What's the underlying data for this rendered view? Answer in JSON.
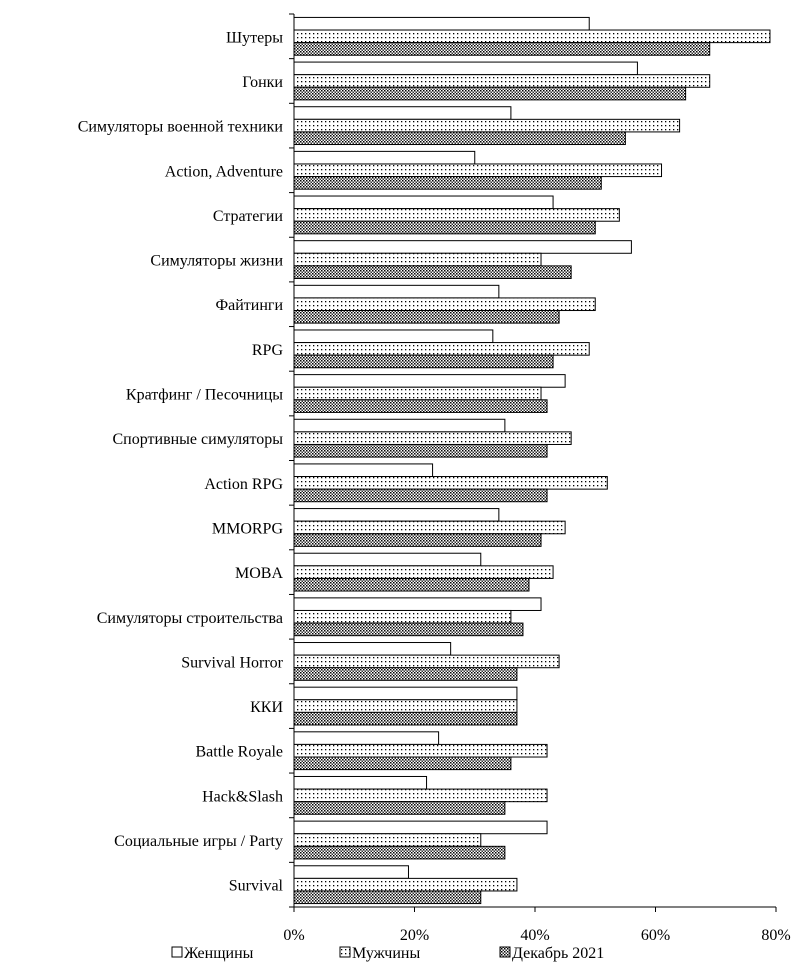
{
  "chart_data": {
    "type": "bar",
    "orientation": "horizontal",
    "title": "",
    "xlabel": "",
    "ylabel": "",
    "xlim": [
      0,
      80
    ],
    "x_ticks": [
      "0%",
      "20%",
      "40%",
      "60%",
      "80%"
    ],
    "grid": false,
    "legend_position": "bottom",
    "categories": [
      "Шутеры",
      "Гонки",
      "Симуляторы военной техники",
      "Action, Adventure",
      "Стратегии",
      "Симуляторы жизни",
      "Файтинги",
      "RPG",
      "Кратфинг / Песочницы",
      "Спортивные симуляторы",
      "Action RPG",
      "MMORPG",
      "MOBA",
      "Симуляторы строительства",
      "Survival Horror",
      "ККИ",
      "Battle Royale",
      "Hack&Slash",
      "Социальные игры / Party",
      "Survival"
    ],
    "series": [
      {
        "name": "Женщины",
        "pattern": "white",
        "values": [
          49,
          57,
          36,
          30,
          43,
          56,
          34,
          33,
          45,
          35,
          23,
          34,
          31,
          41,
          26,
          37,
          24,
          22,
          42,
          19
        ]
      },
      {
        "name": "Мужчины",
        "pattern": "dots",
        "values": [
          79,
          69,
          64,
          61,
          54,
          41,
          50,
          49,
          41,
          46,
          52,
          45,
          43,
          36,
          44,
          37,
          42,
          42,
          31,
          37
        ]
      },
      {
        "name": "Декабрь 2021",
        "pattern": "crosshatch",
        "values": [
          69,
          65,
          55,
          51,
          50,
          46,
          44,
          43,
          42,
          42,
          42,
          41,
          39,
          38,
          37,
          37,
          36,
          35,
          35,
          31
        ]
      }
    ]
  }
}
